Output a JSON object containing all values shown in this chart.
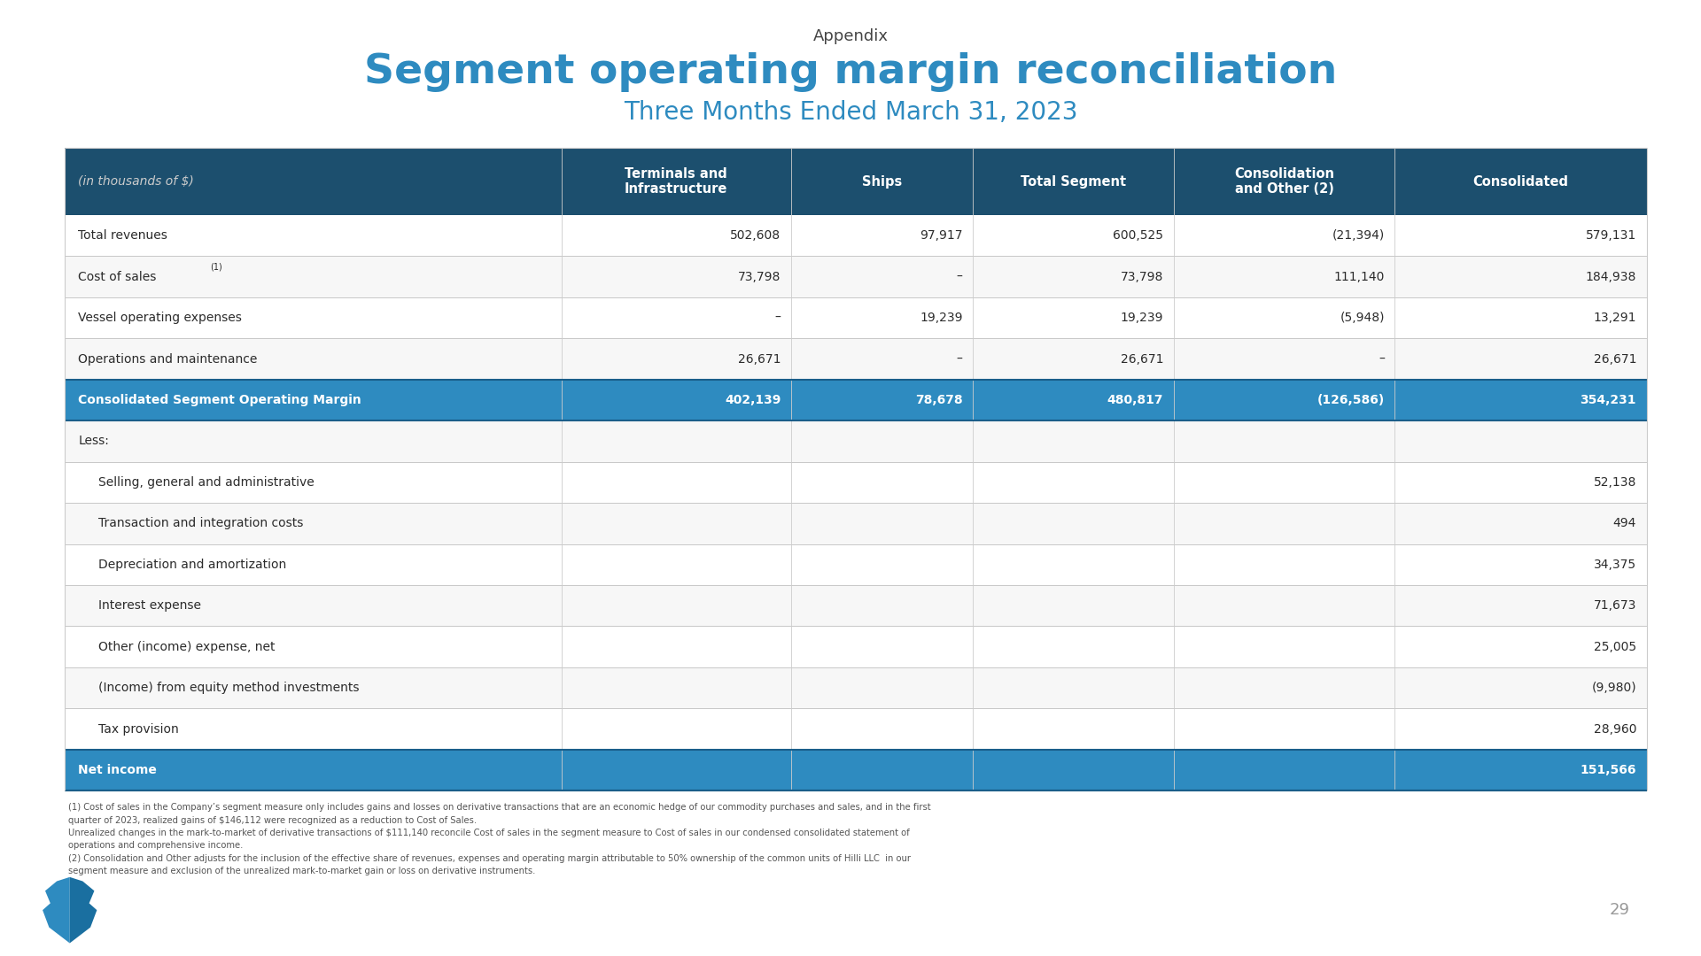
{
  "title_appendix": "Appendix",
  "title_main": "Segment operating margin reconciliation",
  "title_sub": "Three Months Ended March 31, 2023",
  "header_label": "(in thousands of $)",
  "col_headers": [
    "Terminals and\nInfrastructure",
    "Ships",
    "Total Segment",
    "Consolidation\nand Other (2)",
    "Consolidated"
  ],
  "header_bg": "#1c4f6e",
  "header_fg": "#ffffff",
  "highlight_bg": "#2e8bc0",
  "highlight_fg": "#ffffff",
  "rows": [
    {
      "label": "Total revenues",
      "values": [
        "502,608",
        "97,917",
        "600,525",
        "(21,394)",
        "579,131"
      ],
      "bold": false,
      "highlight": false,
      "indent": 0,
      "label_superscript": ""
    },
    {
      "label": "Cost of sales",
      "values": [
        "73,798",
        "–",
        "73,798",
        "111,140",
        "184,938"
      ],
      "bold": false,
      "highlight": false,
      "indent": 0,
      "label_superscript": "(1)"
    },
    {
      "label": "Vessel operating expenses",
      "values": [
        "–",
        "19,239",
        "19,239",
        "(5,948)",
        "13,291"
      ],
      "bold": false,
      "highlight": false,
      "indent": 0,
      "label_superscript": ""
    },
    {
      "label": "Operations and maintenance",
      "values": [
        "26,671",
        "–",
        "26,671",
        "–",
        "26,671"
      ],
      "bold": false,
      "highlight": false,
      "indent": 0,
      "label_superscript": ""
    },
    {
      "label": "Consolidated Segment Operating Margin",
      "values": [
        "402,139",
        "78,678",
        "480,817",
        "(126,586)",
        "354,231"
      ],
      "bold": true,
      "highlight": true,
      "indent": 0,
      "label_superscript": ""
    },
    {
      "label": "Less:",
      "values": [
        "",
        "",
        "",
        "",
        ""
      ],
      "bold": false,
      "highlight": false,
      "indent": 0,
      "label_superscript": ""
    },
    {
      "label": "Selling, general and administrative",
      "values": [
        "",
        "",
        "",
        "",
        "52,138"
      ],
      "bold": false,
      "highlight": false,
      "indent": 1,
      "label_superscript": ""
    },
    {
      "label": "Transaction and integration costs",
      "values": [
        "",
        "",
        "",
        "",
        "494"
      ],
      "bold": false,
      "highlight": false,
      "indent": 1,
      "label_superscript": ""
    },
    {
      "label": "Depreciation and amortization",
      "values": [
        "",
        "",
        "",
        "",
        "34,375"
      ],
      "bold": false,
      "highlight": false,
      "indent": 1,
      "label_superscript": ""
    },
    {
      "label": "Interest expense",
      "values": [
        "",
        "",
        "",
        "",
        "71,673"
      ],
      "bold": false,
      "highlight": false,
      "indent": 1,
      "label_superscript": ""
    },
    {
      "label": "Other (income) expense, net",
      "values": [
        "",
        "",
        "",
        "",
        "25,005"
      ],
      "bold": false,
      "highlight": false,
      "indent": 1,
      "label_superscript": ""
    },
    {
      "label": "(Income) from equity method investments",
      "values": [
        "",
        "",
        "",
        "",
        "(9,980)"
      ],
      "bold": false,
      "highlight": false,
      "indent": 1,
      "label_superscript": ""
    },
    {
      "label": "Tax provision",
      "values": [
        "",
        "",
        "",
        "",
        "28,960"
      ],
      "bold": false,
      "highlight": false,
      "indent": 1,
      "label_superscript": ""
    },
    {
      "label": "Net income",
      "values": [
        "",
        "",
        "",
        "",
        "151,566"
      ],
      "bold": true,
      "highlight": true,
      "indent": 0,
      "label_superscript": ""
    }
  ],
  "footnote_line1": "(1) Cost of sales in the Company’s segment measure only includes gains and losses on derivative transactions that are an economic hedge of our commodity purchases and sales, and in the first",
  "footnote_line2": "quarter of 2023, realized gains of $146,112 were recognized as a reduction to Cost of Sales.",
  "footnote_line3": "Unrealized changes in the mark-to-market of derivative transactions of $111,140 reconcile Cost of sales in the segment measure to Cost of sales in our condensed consolidated statement of",
  "footnote_line4": "operations and comprehensive income.",
  "footnote_line5": "(2) Consolidation and Other adjusts for the inclusion of the effective share of revenues, expenses and operating margin attributable to 50% ownership of the common units of Hilli LLC  in our",
  "footnote_line6": "segment measure and exclusion of the unrealized mark-to-market gain or loss on derivative instruments.",
  "bg_color": "#ffffff",
  "text_color": "#2b2b2b",
  "divider_color": "#c8c8c8",
  "page_number": "29",
  "logo_color": "#2e8bc0"
}
